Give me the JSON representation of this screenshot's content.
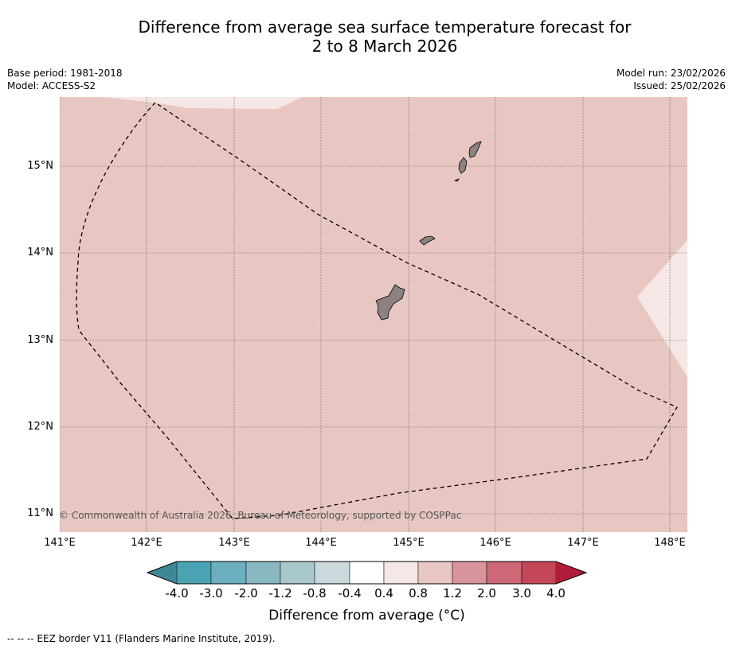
{
  "title": {
    "line1": "Difference from average sea surface temperature forecast for",
    "line2": "2 to 8 March 2026"
  },
  "meta_left": {
    "base_period": "Base period: 1981-2018",
    "model": "Model: ACCESS-S2"
  },
  "meta_right": {
    "model_run": "Model run: 23/02/2026",
    "issued": "Issued: 25/02/2026"
  },
  "map": {
    "lon_range": [
      141.0,
      148.2
    ],
    "lat_range": [
      10.8,
      15.8
    ],
    "lat_ticks": [
      "15°N",
      "14°N",
      "13°N",
      "12°N",
      "11°N"
    ],
    "lon_ticks": [
      "141°E",
      "142°E",
      "143°E",
      "144°E",
      "145°E",
      "146°E",
      "147°E",
      "148°E"
    ],
    "copyright": "© Commonwealth of Australia 2026, Bureau of Meteorology, supported by COSPPac",
    "ocean_color": "#e8c7c2",
    "light_color": "#f5e7e5",
    "land_color": "#8c8380",
    "islands": [
      "Guam",
      "Rota",
      "Tinian",
      "Saipan"
    ]
  },
  "colorbar": {
    "title": "Difference from average (°C)",
    "labels": [
      "-4.0",
      "-3.0",
      "-2.0",
      "-1.2",
      "-0.8",
      "-0.4",
      "0.4",
      "0.8",
      "1.2",
      "2.0",
      "3.0",
      "4.0"
    ],
    "colors": [
      "#4ba4b4",
      "#6cafbe",
      "#89b8c3",
      "#a8c8cc",
      "#c9d9dc",
      "#ffffff",
      "#f5e7e5",
      "#e8c7c2",
      "#d9939a",
      "#cd6976",
      "#c34759"
    ],
    "under_color": "#3e8896",
    "over_color": "#b01e3b"
  },
  "footer": "--  --  -- EEZ border V11 (Flanders Marine Institute, 2019)."
}
